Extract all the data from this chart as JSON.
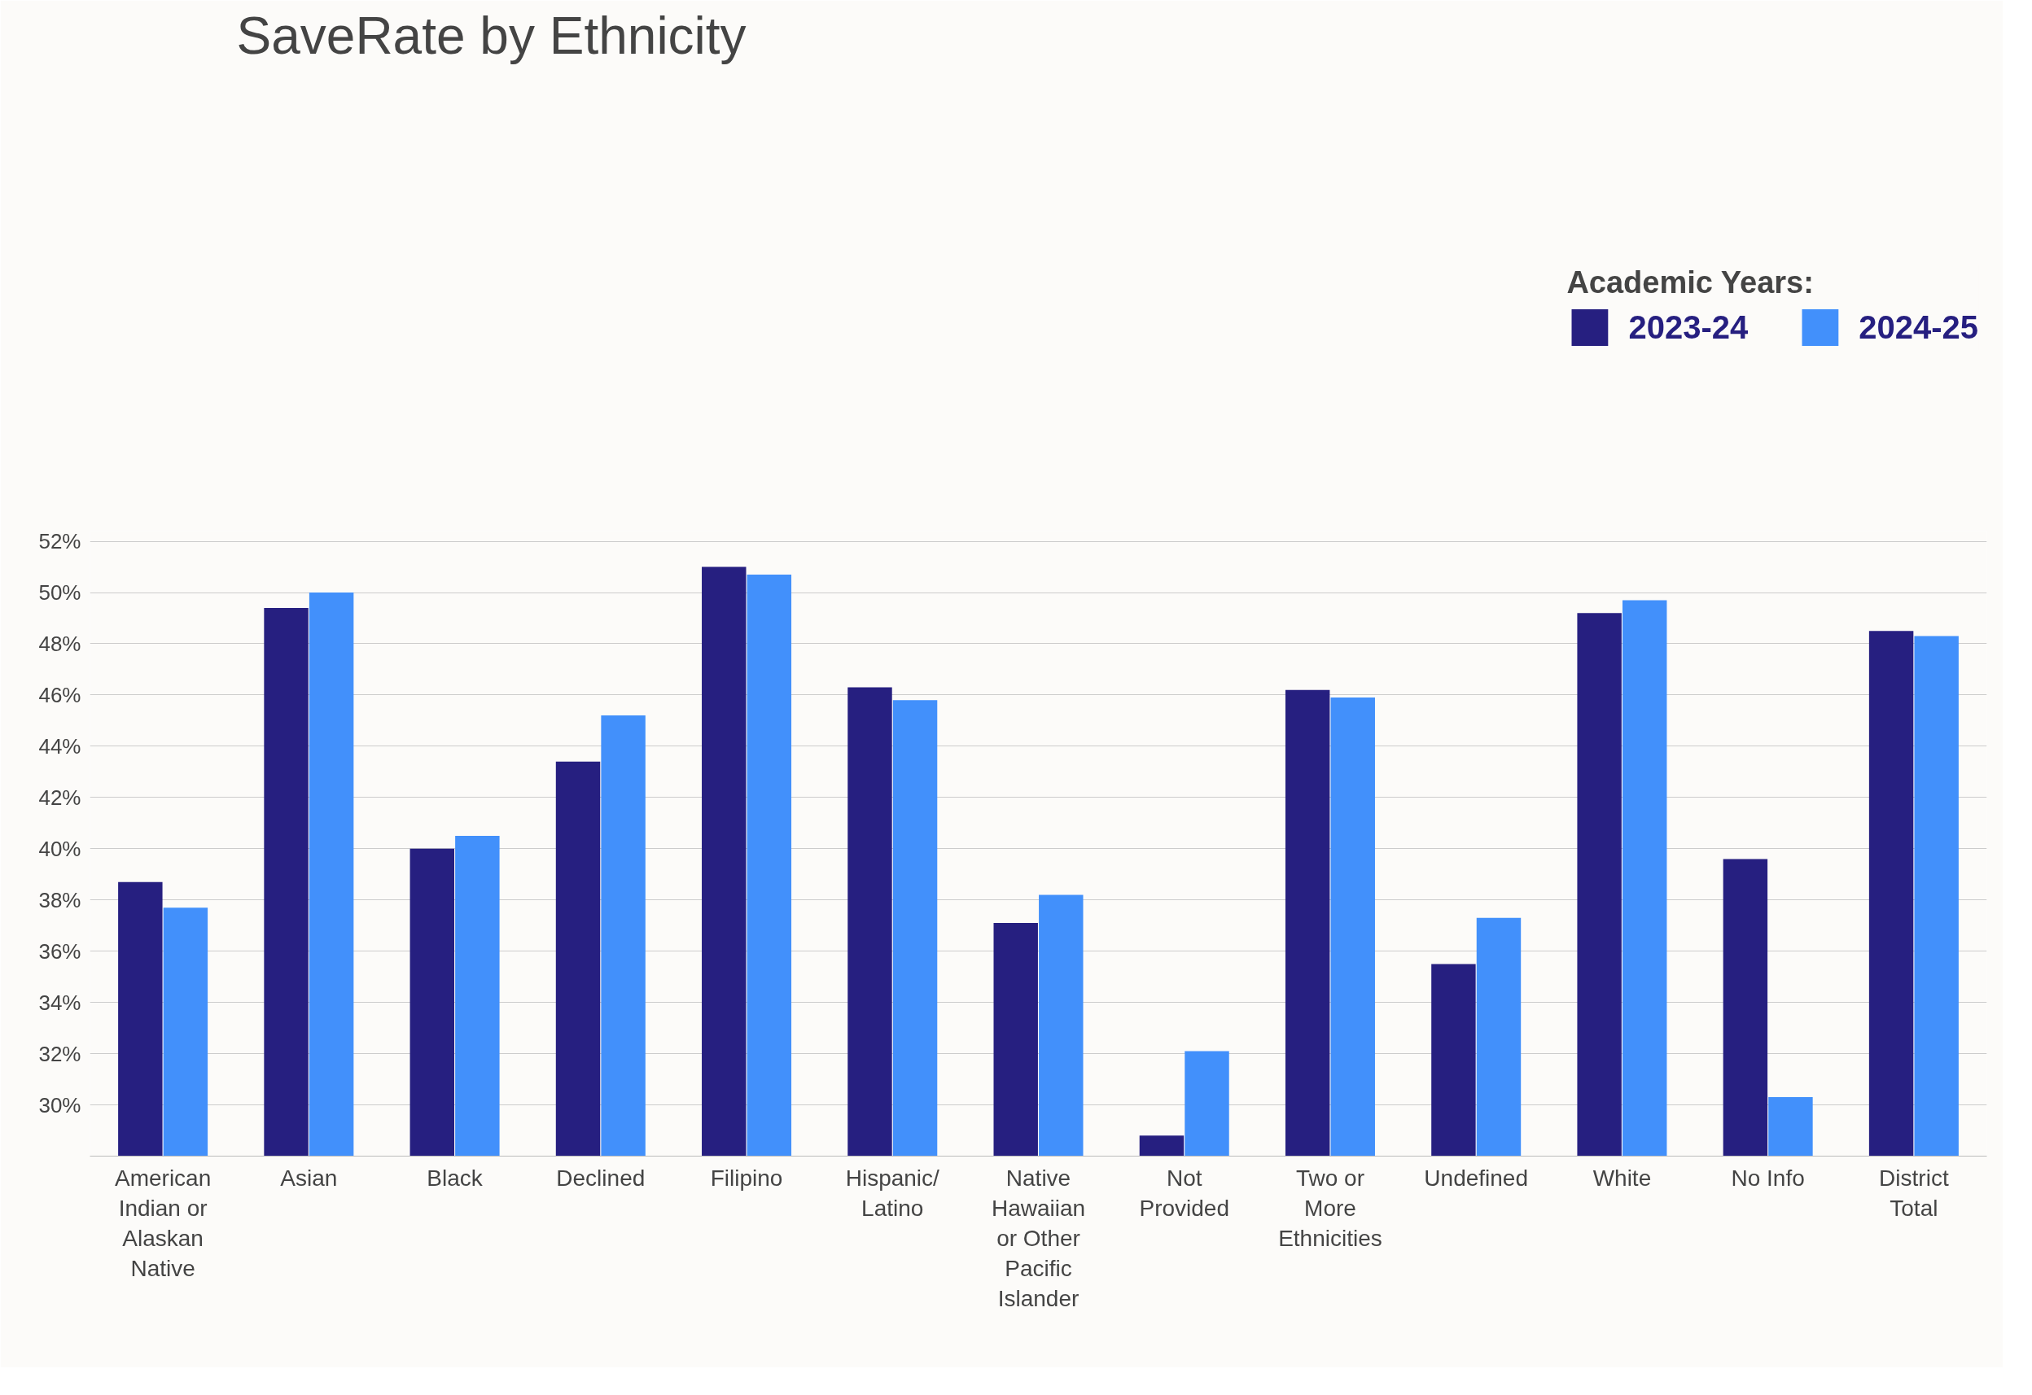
{
  "chart_data": {
    "type": "bar",
    "title": "SaveRate by Ethnicity",
    "legend_title": "Academic Years:",
    "categories": [
      "American Indian or Alaskan Native",
      "Asian",
      "Black",
      "Declined",
      "Filipino",
      "Hispanic/ Latino",
      "Native Hawaiian or Other Pacific Islander",
      "Not Provided",
      "Two or More Ethnicities",
      "Undefined",
      "White",
      "No Info",
      "District Total"
    ],
    "series": [
      {
        "name": "2023-24",
        "color": "#261f80",
        "values": [
          38.7,
          49.4,
          40.0,
          43.4,
          51.0,
          46.3,
          37.1,
          28.8,
          46.2,
          35.5,
          49.2,
          39.6,
          48.5
        ]
      },
      {
        "name": "2024-25",
        "color": "#4290fb",
        "values": [
          37.7,
          50.0,
          40.5,
          45.2,
          50.7,
          45.8,
          38.2,
          32.1,
          45.9,
          37.3,
          49.7,
          30.3,
          48.3
        ]
      }
    ],
    "ylim": [
      28,
      52.4
    ],
    "yticks": [
      {
        "value": 30,
        "label": "30%"
      },
      {
        "value": 32,
        "label": "32%"
      },
      {
        "value": 34,
        "label": "34%"
      },
      {
        "value": 36,
        "label": "36%"
      },
      {
        "value": 38,
        "label": "38%"
      },
      {
        "value": 40,
        "label": "40%"
      },
      {
        "value": 42,
        "label": "42%"
      },
      {
        "value": 44,
        "label": "44%"
      },
      {
        "value": 46,
        "label": "46%"
      },
      {
        "value": 48,
        "label": "48%"
      },
      {
        "value": 50,
        "label": "50%"
      },
      {
        "value": 52,
        "label": "52%"
      }
    ],
    "grid": "y",
    "legend": "top"
  }
}
